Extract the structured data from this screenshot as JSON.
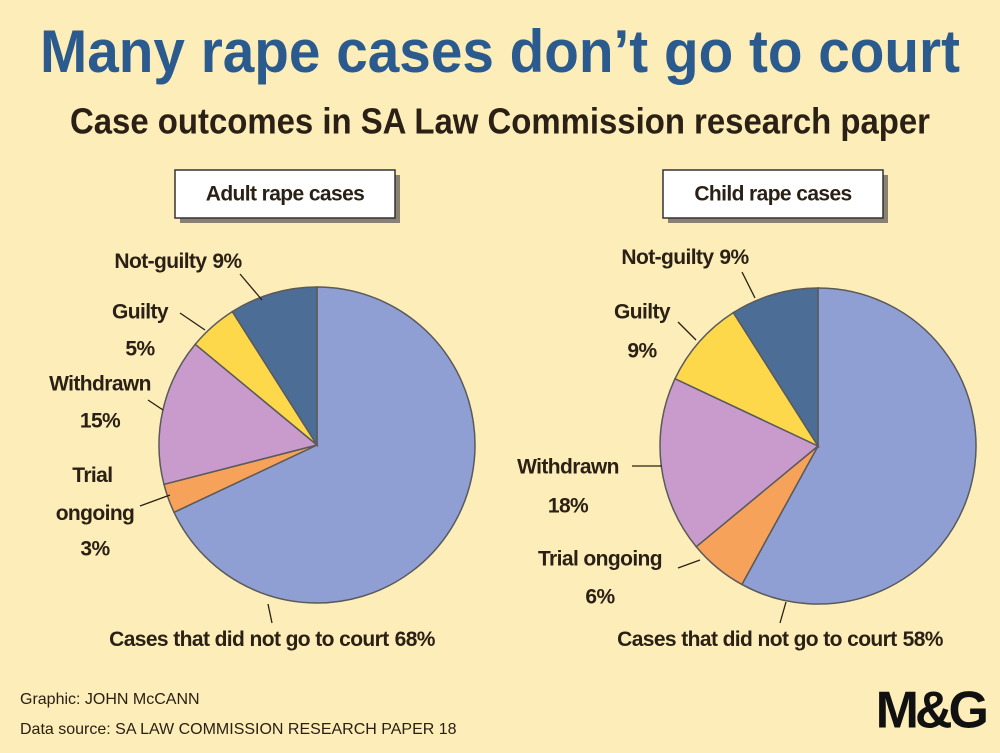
{
  "title": "Many rape cases don’t go to court",
  "subtitle": "Case outcomes in SA Law Commission research paper",
  "credit": "Graphic: JOHN McCANN",
  "source": "Data source: SA LAW COMMISSION RESEARCH PAPER 18",
  "logo": "M&G",
  "chart_data": [
    {
      "type": "pie",
      "title": "Adult rape cases",
      "categories": [
        "Cases that did not go to court",
        "Trial ongoing",
        "Withdrawn",
        "Guilty",
        "Not-guilty"
      ],
      "values": [
        68,
        3,
        15,
        5,
        9
      ],
      "value_labels": [
        "68%",
        "3%",
        "15%",
        "5%",
        "9%"
      ],
      "colors": [
        "#8f9fd4",
        "#f6a25a",
        "#c89bcc",
        "#fdd84a",
        "#4b6d96"
      ]
    },
    {
      "type": "pie",
      "title": "Child rape cases",
      "categories": [
        "Cases that did not go to court",
        "Trial ongoing",
        "Withdrawn",
        "Guilty",
        "Not-guilty"
      ],
      "values": [
        58,
        6,
        18,
        9,
        9
      ],
      "value_labels": [
        "58%",
        "6%",
        "18%",
        "9%",
        "9%"
      ],
      "colors": [
        "#8f9fd4",
        "#f6a25a",
        "#c89bcc",
        "#fdd84a",
        "#4b6d96"
      ]
    }
  ]
}
